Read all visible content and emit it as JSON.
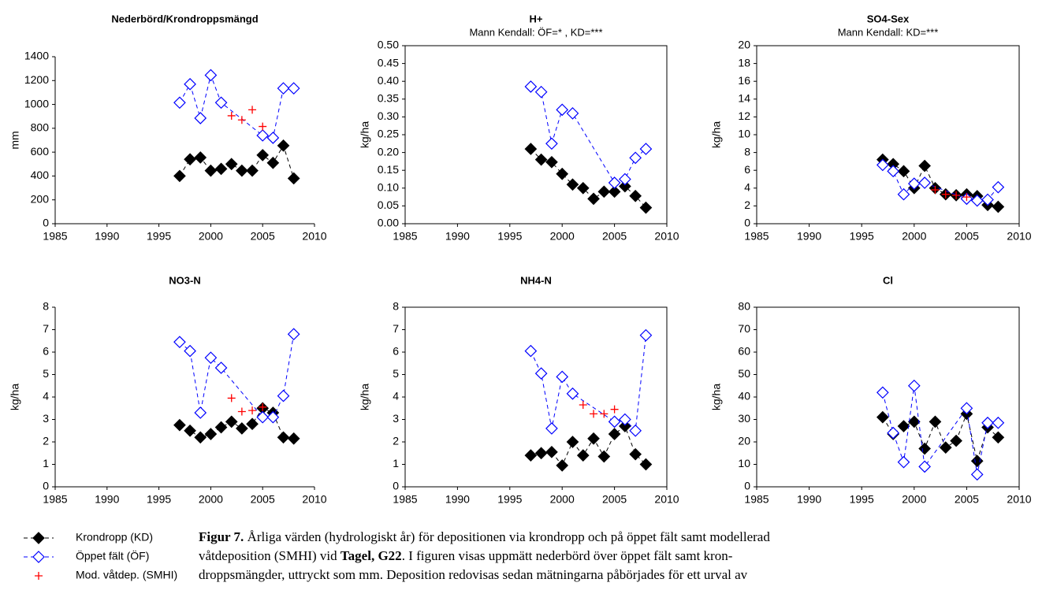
{
  "chart_data": [
    {
      "type": "scatter",
      "title": "Nederbörd/Krondroppsmängd",
      "ylabel": "mm",
      "frame": false,
      "xlim": [
        1985,
        2010
      ],
      "xticks": [
        1985,
        1990,
        1995,
        2000,
        2005,
        2010
      ],
      "ylim": [
        0,
        1400
      ],
      "yticks": [
        0,
        200,
        400,
        600,
        800,
        1000,
        1200,
        1400
      ],
      "series": [
        {
          "name": "Krondropp (KD)",
          "color": "#000000",
          "marker": "diamond-filled",
          "line": "dashed",
          "x": [
            1997,
            1998,
            1999,
            2000,
            2001,
            2002,
            2003,
            2004,
            2005,
            2006,
            2007,
            2008
          ],
          "values": [
            400,
            540,
            555,
            445,
            460,
            500,
            445,
            445,
            575,
            510,
            655,
            380
          ]
        },
        {
          "name": "Öppet fält (ÖF)",
          "color": "#0000ff",
          "marker": "diamond-open",
          "line": "dashed",
          "x": [
            1997,
            1998,
            1999,
            2000,
            2001,
            2005,
            2006,
            2007,
            2008
          ],
          "values": [
            1015,
            1170,
            885,
            1245,
            1015,
            740,
            720,
            1135,
            1135
          ]
        },
        {
          "name": "Mod. våtdep. (SMHI)",
          "color": "#ff0000",
          "marker": "plus",
          "line": "none",
          "x": [
            2002,
            2003,
            2004,
            2005
          ],
          "values": [
            905,
            870,
            955,
            815
          ]
        }
      ]
    },
    {
      "type": "scatter",
      "title": "H+",
      "subtitle": "Mann Kendall: ÖF=* , KD=***",
      "ylabel": "kg/ha",
      "frame": true,
      "xlim": [
        1985,
        2010
      ],
      "xticks": [
        1985,
        1990,
        1995,
        2000,
        2005,
        2010
      ],
      "ylim": [
        0,
        0.5
      ],
      "yticks": [
        {
          "value": 0,
          "label": "0.00"
        },
        {
          "value": 0.05,
          "label": "0.05"
        },
        {
          "value": 0.1,
          "label": "0.10"
        },
        {
          "value": 0.15,
          "label": "0.15"
        },
        {
          "value": 0.2,
          "label": "0.20"
        },
        {
          "value": 0.25,
          "label": "0.25"
        },
        {
          "value": 0.3,
          "label": "0.30"
        },
        {
          "value": 0.35,
          "label": "0.35"
        },
        {
          "value": 0.4,
          "label": "0.40"
        },
        {
          "value": 0.45,
          "label": "0.45"
        },
        {
          "value": 0.5,
          "label": "0.50"
        }
      ],
      "series": [
        {
          "name": "Krondropp (KD)",
          "color": "#000000",
          "marker": "diamond-filled",
          "line": "dashed",
          "x": [
            1997,
            1998,
            1999,
            2000,
            2001,
            2002,
            2003,
            2004,
            2005,
            2006,
            2007,
            2008
          ],
          "values": [
            0.21,
            0.18,
            0.173,
            0.14,
            0.11,
            0.1,
            0.07,
            0.09,
            0.09,
            0.105,
            0.078,
            0.045
          ]
        },
        {
          "name": "Öppet fält (ÖF)",
          "color": "#0000ff",
          "marker": "diamond-open",
          "line": "dashed",
          "x": [
            1997,
            1998,
            1999,
            2000,
            2001,
            2005,
            2006,
            2007,
            2008
          ],
          "values": [
            0.385,
            0.37,
            0.225,
            0.32,
            0.31,
            0.115,
            0.125,
            0.185,
            0.21
          ]
        }
      ]
    },
    {
      "type": "scatter",
      "title": "SO4-Sex",
      "subtitle": "Mann Kendall: KD=***",
      "ylabel": "kg/ha",
      "frame": true,
      "xlim": [
        1985,
        2010
      ],
      "xticks": [
        1985,
        1990,
        1995,
        2000,
        2005,
        2010
      ],
      "ylim": [
        0,
        20
      ],
      "yticks": [
        0,
        2,
        4,
        6,
        8,
        10,
        12,
        14,
        16,
        18,
        20
      ],
      "series": [
        {
          "name": "Krondropp (KD)",
          "color": "#000000",
          "marker": "diamond-filled",
          "line": "dashed",
          "x": [
            1997,
            1998,
            1999,
            2000,
            2001,
            2002,
            2003,
            2004,
            2005,
            2006,
            2007,
            2008
          ],
          "values": [
            7.2,
            6.7,
            5.9,
            4.0,
            6.5,
            4.0,
            3.3,
            3.2,
            3.3,
            3.1,
            2.1,
            1.9
          ]
        },
        {
          "name": "Öppet fält (ÖF)",
          "color": "#0000ff",
          "marker": "diamond-open",
          "line": "dashed",
          "x": [
            1997,
            1998,
            1999,
            2000,
            2001,
            2005,
            2006,
            2007,
            2008
          ],
          "values": [
            6.6,
            5.9,
            3.3,
            4.5,
            4.6,
            2.8,
            2.6,
            2.7,
            4.1
          ]
        },
        {
          "name": "Mod. våtdep. (SMHI)",
          "color": "#ff0000",
          "marker": "plus",
          "line": "none",
          "x": [
            2002,
            2003,
            2004,
            2005
          ],
          "values": [
            3.8,
            3.3,
            3.2,
            3.0
          ]
        }
      ]
    },
    {
      "type": "scatter",
      "title": "NO3-N",
      "ylabel": "kg/ha",
      "frame": false,
      "xlim": [
        1985,
        2010
      ],
      "xticks": [
        1985,
        1990,
        1995,
        2000,
        2005,
        2010
      ],
      "ylim": [
        0,
        8
      ],
      "yticks": [
        0,
        1,
        2,
        3,
        4,
        5,
        6,
        7,
        8
      ],
      "series": [
        {
          "name": "Krondropp (KD)",
          "color": "#000000",
          "marker": "diamond-filled",
          "line": "dashed",
          "x": [
            1997,
            1998,
            1999,
            2000,
            2001,
            2002,
            2003,
            2004,
            2005,
            2006,
            2007,
            2008
          ],
          "values": [
            2.75,
            2.5,
            2.2,
            2.35,
            2.65,
            2.9,
            2.6,
            2.8,
            3.5,
            3.3,
            2.2,
            2.15
          ]
        },
        {
          "name": "Öppet fält (ÖF)",
          "color": "#0000ff",
          "marker": "diamond-open",
          "line": "dashed",
          "x": [
            1997,
            1998,
            1999,
            2000,
            2001,
            2005,
            2006,
            2007,
            2008
          ],
          "values": [
            6.45,
            6.05,
            3.3,
            5.75,
            5.3,
            3.1,
            3.1,
            4.05,
            6.8
          ]
        },
        {
          "name": "Mod. våtdep. (SMHI)",
          "color": "#ff0000",
          "marker": "plus",
          "line": "none",
          "x": [
            2002,
            2003,
            2004,
            2005
          ],
          "values": [
            3.95,
            3.35,
            3.4,
            3.55
          ]
        }
      ]
    },
    {
      "type": "scatter",
      "title": "NH4-N",
      "ylabel": "kg/ha",
      "frame": true,
      "xlim": [
        1985,
        2010
      ],
      "xticks": [
        1985,
        1990,
        1995,
        2000,
        2005,
        2010
      ],
      "ylim": [
        0,
        8
      ],
      "yticks": [
        0,
        1,
        2,
        3,
        4,
        5,
        6,
        7,
        8
      ],
      "series": [
        {
          "name": "Krondropp (KD)",
          "color": "#000000",
          "marker": "diamond-filled",
          "line": "dashed",
          "x": [
            1997,
            1998,
            1999,
            2000,
            2001,
            2002,
            2003,
            2004,
            2005,
            2006,
            2007,
            2008
          ],
          "values": [
            1.4,
            1.5,
            1.55,
            0.95,
            2.0,
            1.4,
            2.15,
            1.35,
            2.35,
            2.7,
            1.45,
            1.0
          ]
        },
        {
          "name": "Öppet fält (ÖF)",
          "color": "#0000ff",
          "marker": "diamond-open",
          "line": "dashed",
          "x": [
            1997,
            1998,
            1999,
            2000,
            2001,
            2005,
            2006,
            2007,
            2008
          ],
          "values": [
            6.05,
            5.05,
            2.6,
            4.9,
            4.15,
            2.9,
            3.0,
            2.5,
            6.75
          ]
        },
        {
          "name": "Mod. våtdep. (SMHI)",
          "color": "#ff0000",
          "marker": "plus",
          "line": "none",
          "x": [
            2002,
            2003,
            2004,
            2005
          ],
          "values": [
            3.65,
            3.25,
            3.25,
            3.45
          ]
        }
      ]
    },
    {
      "type": "scatter",
      "title": "Cl",
      "ylabel": "kg/ha",
      "frame": true,
      "xlim": [
        1985,
        2010
      ],
      "xticks": [
        1985,
        1990,
        1995,
        2000,
        2005,
        2010
      ],
      "ylim": [
        0,
        80
      ],
      "yticks": [
        0,
        10,
        20,
        30,
        40,
        50,
        60,
        70,
        80
      ],
      "series": [
        {
          "name": "Krondropp (KD)",
          "color": "#000000",
          "marker": "diamond-filled",
          "line": "dashed",
          "x": [
            1997,
            1998,
            1999,
            2000,
            2001,
            2002,
            2003,
            2004,
            2005,
            2006,
            2007,
            2008
          ],
          "values": [
            31,
            23.5,
            27,
            29,
            17,
            29,
            17.5,
            20.5,
            32.5,
            11.5,
            26.5,
            22
          ]
        },
        {
          "name": "Öppet fält (ÖF)",
          "color": "#0000ff",
          "marker": "diamond-open",
          "line": "dashed",
          "x": [
            1997,
            1998,
            1999,
            2000,
            2001,
            2005,
            2006,
            2007,
            2008
          ],
          "values": [
            42,
            24,
            11,
            45,
            9,
            35,
            5.5,
            28.5,
            28.5
          ]
        }
      ]
    }
  ],
  "caption": {
    "lines": [
      [
        {
          "text": "Figur 7.",
          "bold": true
        },
        {
          "text": " Årliga värden (hydrologiskt år) för depositionen via krondropp och på öppet fält samt modellerad",
          "bold": false
        }
      ],
      [
        {
          "text": "våtdeposition (SMHI) vid ",
          "bold": false
        },
        {
          "text": "Tagel, G22",
          "bold": true
        },
        {
          "text": ". I figuren visas uppmätt nederbörd över öppet fält samt kron-",
          "bold": false
        }
      ],
      [
        {
          "text": "droppsmängder, uttryckt som mm. Deposition redovisas sedan mätningarna påbörjades för ett urval av",
          "bold": false
        }
      ]
    ]
  }
}
